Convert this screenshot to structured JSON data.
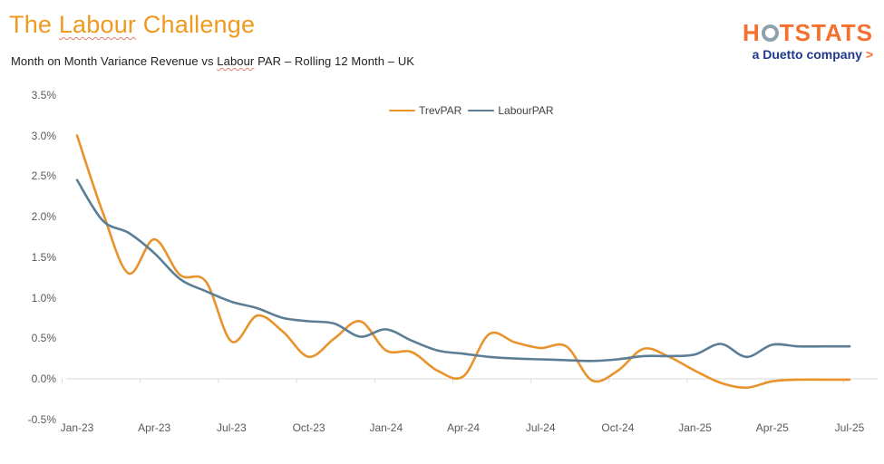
{
  "header": {
    "title_pre": "The ",
    "title_highlight": "Labour",
    "title_post": " Challenge",
    "subtitle_pre": "Month on Month Variance Revenue vs ",
    "subtitle_highlight": "Labour",
    "subtitle_post": " PAR – Rolling 12 Month – UK"
  },
  "logo": {
    "word_pre": "H",
    "word_post": "TSTATS",
    "tagline": "a Duetto company",
    "arrow": ">",
    "orange": "#F3702F",
    "navy": "#20398A",
    "ring_gray": "#8FA1AC"
  },
  "chart_data": {
    "type": "line",
    "title": "Month on Month Variance Revenue vs Labour PAR – Rolling 12 Month – UK",
    "unit": "percent",
    "x": [
      "Jan-23",
      "Feb-23",
      "Mar-23",
      "Apr-23",
      "May-23",
      "Jun-23",
      "Jul-23",
      "Aug-23",
      "Sep-23",
      "Oct-23",
      "Nov-23",
      "Dec-23",
      "Jan-24",
      "Feb-24",
      "Mar-24",
      "Apr-24",
      "May-24",
      "Jun-24",
      "Jul-24",
      "Aug-24",
      "Sep-24",
      "Oct-24",
      "Nov-24",
      "Dec-24",
      "Jan-25",
      "Feb-25",
      "Mar-25",
      "Apr-25",
      "May-25",
      "Jun-25",
      "Jul-25"
    ],
    "series": [
      {
        "name": "TrevPAR",
        "color": "#E8932C",
        "values": [
          3.0,
          2.05,
          1.3,
          1.72,
          1.28,
          1.2,
          0.46,
          0.78,
          0.58,
          0.27,
          0.5,
          0.71,
          0.35,
          0.33,
          0.1,
          0.03,
          0.55,
          0.45,
          0.38,
          0.4,
          -0.02,
          0.1,
          0.37,
          0.27,
          0.1,
          -0.05,
          -0.11,
          -0.03,
          -0.01,
          -0.01,
          -0.01
        ]
      },
      {
        "name": "LabourPAR",
        "color": "#5B7E96",
        "values": [
          2.45,
          1.95,
          1.8,
          1.55,
          1.23,
          1.08,
          0.95,
          0.87,
          0.75,
          0.71,
          0.68,
          0.52,
          0.61,
          0.47,
          0.35,
          0.31,
          0.27,
          0.25,
          0.24,
          0.23,
          0.22,
          0.24,
          0.28,
          0.28,
          0.3,
          0.43,
          0.27,
          0.42,
          0.4,
          0.4,
          0.4
        ]
      }
    ],
    "y_axis_labels": [
      "3.5%",
      "3.0%",
      "2.5%",
      "2.0%",
      "1.5%",
      "1.0%",
      "0.5%",
      "0.0%",
      "-0.5%"
    ],
    "x_axis_labels": [
      "Jan-23",
      "Apr-23",
      "Jul-23",
      "Oct-23",
      "Jan-24",
      "Apr-24",
      "Jul-24",
      "Oct-24",
      "Jan-25",
      "Apr-25",
      "Jul-25"
    ],
    "ylim": [
      -0.5,
      3.5
    ],
    "grid": "zero-line-only",
    "legend_position": "top-center",
    "line_style": "smooth"
  }
}
